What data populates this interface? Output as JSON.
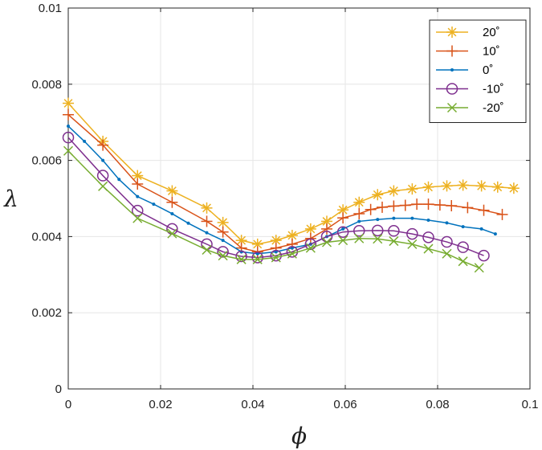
{
  "chart_data": {
    "type": "line",
    "xlabel": "ϕ",
    "ylabel": "λ",
    "xlim": [
      0,
      0.1
    ],
    "ylim": [
      0,
      0.01
    ],
    "xticks": [
      0,
      0.02,
      0.04,
      0.06,
      0.08,
      0.1
    ],
    "xtick_labels": [
      "0",
      "0.02",
      "0.04",
      "0.06",
      "0.08",
      "0.1"
    ],
    "yticks": [
      0,
      0.002,
      0.004,
      0.006,
      0.008,
      0.01
    ],
    "ytick_labels": [
      "0",
      "0.002",
      "0.004",
      "0.006",
      "0.008",
      "0.01"
    ],
    "grid": true,
    "legend_position": "top-right",
    "series": [
      {
        "name": "20˚",
        "color": "#EDB120",
        "marker": "asterisk",
        "x": [
          0,
          0.0075,
          0.015,
          0.0225,
          0.03,
          0.0335,
          0.0375,
          0.041,
          0.045,
          0.0485,
          0.0525,
          0.056,
          0.0595,
          0.063,
          0.067,
          0.0705,
          0.0745,
          0.078,
          0.082,
          0.0855,
          0.0895,
          0.093,
          0.0965
        ],
        "y": [
          0.0075,
          0.0065,
          0.0056,
          0.0052,
          0.00475,
          0.00437,
          0.0039,
          0.0038,
          0.0039,
          0.00403,
          0.0042,
          0.0044,
          0.0047,
          0.0049,
          0.0051,
          0.0052,
          0.00525,
          0.0053,
          0.00533,
          0.00535,
          0.00533,
          0.0053,
          0.00527
        ]
      },
      {
        "name": "10˚",
        "color": "#D95319",
        "marker": "plus",
        "x": [
          0,
          0.0075,
          0.015,
          0.0225,
          0.03,
          0.0335,
          0.0375,
          0.041,
          0.045,
          0.0485,
          0.0525,
          0.056,
          0.0595,
          0.063,
          0.0655,
          0.068,
          0.0705,
          0.073,
          0.0755,
          0.078,
          0.0805,
          0.083,
          0.0865,
          0.09,
          0.094
        ],
        "y": [
          0.0072,
          0.0064,
          0.00538,
          0.0049,
          0.0044,
          0.00412,
          0.0037,
          0.0036,
          0.0037,
          0.0038,
          0.00395,
          0.0042,
          0.00449,
          0.0046,
          0.00471,
          0.00477,
          0.0048,
          0.00482,
          0.00485,
          0.00485,
          0.00483,
          0.00481,
          0.00476,
          0.00469,
          0.00458
        ]
      },
      {
        "name": "0˚",
        "color": "#0072BD",
        "marker": "point",
        "x": [
          0,
          0.0035,
          0.0075,
          0.011,
          0.015,
          0.0185,
          0.0225,
          0.026,
          0.03,
          0.0335,
          0.0375,
          0.041,
          0.045,
          0.0485,
          0.0525,
          0.056,
          0.0595,
          0.063,
          0.067,
          0.0705,
          0.0745,
          0.078,
          0.082,
          0.0855,
          0.0895,
          0.0925
        ],
        "y": [
          0.0069,
          0.0065,
          0.006,
          0.0055,
          0.00505,
          0.00485,
          0.0046,
          0.00435,
          0.0041,
          0.0039,
          0.0036,
          0.00355,
          0.0036,
          0.0037,
          0.0038,
          0.004,
          0.0042,
          0.0044,
          0.00445,
          0.00448,
          0.00448,
          0.00443,
          0.00436,
          0.00426,
          0.0042,
          0.00407
        ]
      },
      {
        "name": "-10˚",
        "color": "#7E2F8E",
        "marker": "circle",
        "x": [
          0,
          0.0075,
          0.015,
          0.0225,
          0.03,
          0.0335,
          0.0375,
          0.041,
          0.045,
          0.0485,
          0.0525,
          0.056,
          0.0595,
          0.063,
          0.067,
          0.0705,
          0.0745,
          0.078,
          0.082,
          0.0855,
          0.09
        ],
        "y": [
          0.0066,
          0.0056,
          0.00468,
          0.0042,
          0.0038,
          0.0036,
          0.00348,
          0.00345,
          0.0035,
          0.0036,
          0.0038,
          0.004,
          0.00412,
          0.00415,
          0.00416,
          0.00415,
          0.00407,
          0.00398,
          0.00386,
          0.00372,
          0.0035
        ]
      },
      {
        "name": "-20˚",
        "color": "#77AC30",
        "marker": "x",
        "x": [
          0,
          0.0075,
          0.015,
          0.0225,
          0.03,
          0.0335,
          0.0375,
          0.041,
          0.045,
          0.0485,
          0.0525,
          0.056,
          0.0595,
          0.063,
          0.067,
          0.0705,
          0.0745,
          0.078,
          0.082,
          0.0855,
          0.089
        ],
        "y": [
          0.00625,
          0.00532,
          0.00448,
          0.00408,
          0.00365,
          0.0035,
          0.0034,
          0.0034,
          0.00345,
          0.00355,
          0.0037,
          0.00385,
          0.0039,
          0.00395,
          0.00394,
          0.00388,
          0.0038,
          0.00368,
          0.00355,
          0.00335,
          0.00318
        ]
      }
    ]
  }
}
